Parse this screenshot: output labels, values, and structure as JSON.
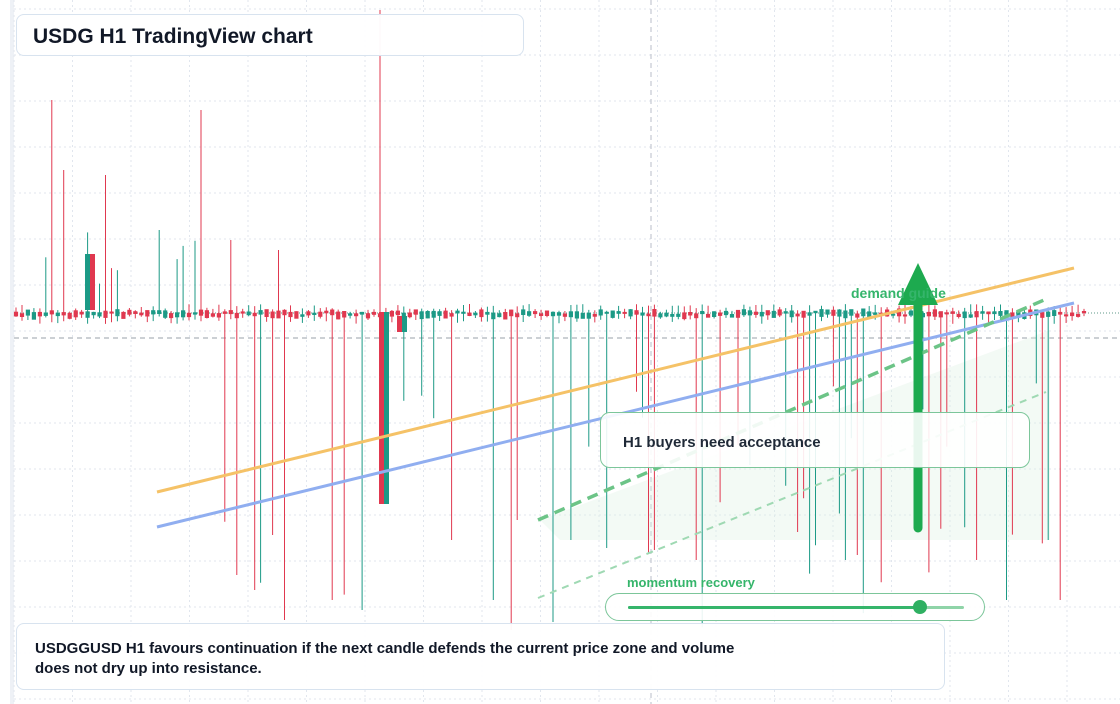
{
  "header": {
    "title": "USDG H1 TradingView chart"
  },
  "annotations": {
    "note": "H1 buyers need acceptance",
    "demand_label": "demand guide",
    "momentum_label": "momentum recovery",
    "momentum_level": 0.87
  },
  "footer": {
    "summary": "USDGGUSD H1 favours continuation if the next candle defends the current price zone and volume does not dry up into resistance."
  },
  "colors": {
    "bull": "#1c9a86",
    "bear": "#e0384f",
    "trend_orange": "#f5c267",
    "trend_blue": "#90aef0",
    "guide_green": "#6cc487",
    "arrow_green": "#1daa4f",
    "grid": "#e1e6ee"
  },
  "chart_data": {
    "type": "candlestick",
    "symbol": "USDGGUSD",
    "timeframe": "H1",
    "candle_count": 180,
    "price_reference": 1.0,
    "overlays": [
      "rising resistance trendline",
      "rising support trendline",
      "dashed demand guide",
      "dotted lower channel",
      "upward projection arrow"
    ]
  }
}
